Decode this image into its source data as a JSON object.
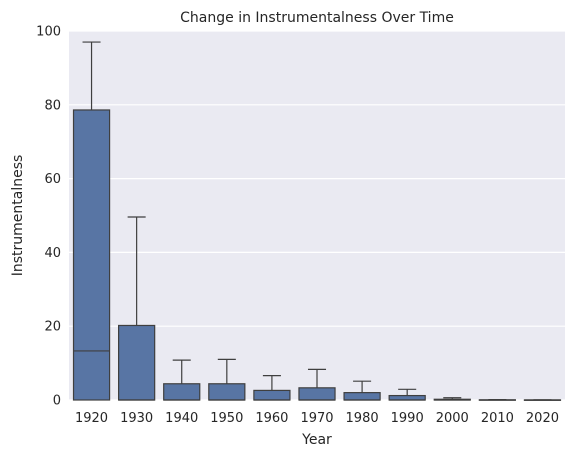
{
  "chart_data": {
    "type": "box",
    "title": "Change in Instrumentalness Over Time",
    "xlabel": "Year",
    "ylabel": "Instrumentalness",
    "ylim": [
      0,
      100
    ],
    "yticks": [
      0,
      20,
      40,
      60,
      80,
      100
    ],
    "grid": true,
    "legend": "none",
    "categories": [
      "1920",
      "1930",
      "1940",
      "1950",
      "1960",
      "1970",
      "1980",
      "1990",
      "2000",
      "2010",
      "2020"
    ],
    "boxes": [
      {
        "category": "1920",
        "q1": 0,
        "median": 13.3,
        "q3": 78.6,
        "whisker_low": 0,
        "whisker_high": 97.0
      },
      {
        "category": "1930",
        "q1": 0,
        "median": 0,
        "q3": 20.2,
        "whisker_low": 0,
        "whisker_high": 49.6
      },
      {
        "category": "1940",
        "q1": 0,
        "median": 0,
        "q3": 4.4,
        "whisker_low": 0,
        "whisker_high": 10.8
      },
      {
        "category": "1950",
        "q1": 0,
        "median": 0,
        "q3": 4.4,
        "whisker_low": 0,
        "whisker_high": 11.0
      },
      {
        "category": "1960",
        "q1": 0,
        "median": 0,
        "q3": 2.6,
        "whisker_low": 0,
        "whisker_high": 6.6
      },
      {
        "category": "1970",
        "q1": 0,
        "median": 0,
        "q3": 3.3,
        "whisker_low": 0,
        "whisker_high": 8.3
      },
      {
        "category": "1980",
        "q1": 0,
        "median": 0,
        "q3": 2.0,
        "whisker_low": 0,
        "whisker_high": 5.1
      },
      {
        "category": "1990",
        "q1": 0,
        "median": 0,
        "q3": 1.2,
        "whisker_low": 0,
        "whisker_high": 2.9
      },
      {
        "category": "2000",
        "q1": 0,
        "median": 0,
        "q3": 0.2,
        "whisker_low": 0,
        "whisker_high": 0.6
      },
      {
        "category": "2010",
        "q1": 0,
        "median": 0,
        "q3": 0.05,
        "whisker_low": 0,
        "whisker_high": 0.1
      },
      {
        "category": "2020",
        "q1": 0,
        "median": 0,
        "q3": 0.02,
        "whisker_low": 0,
        "whisker_high": 0.05
      }
    ],
    "colors": {
      "box_fill": "#5875a4",
      "box_edge": "#3f3f3f",
      "plot_background": "#eaeaf2",
      "grid": "#ffffff",
      "text": "#262626"
    }
  }
}
